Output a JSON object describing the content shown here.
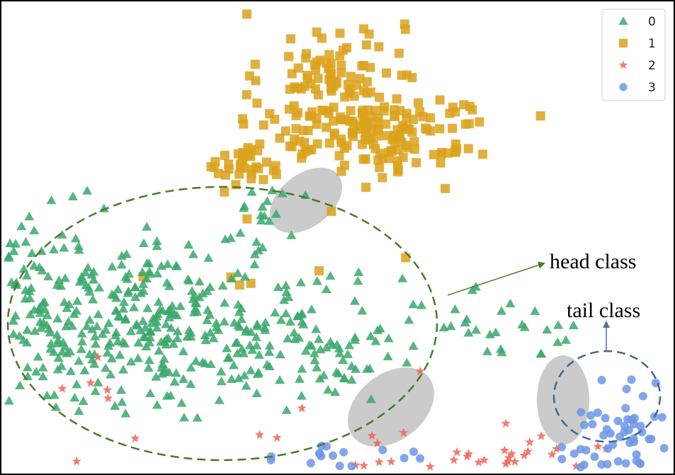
{
  "chart_data": {
    "type": "scatter",
    "title": "",
    "xlabel": "",
    "ylabel": "",
    "axes_visible": false,
    "legend": {
      "placement": "top-right",
      "entries": [
        {
          "label": "0",
          "marker": "triangle",
          "color": "#3aa86b"
        },
        {
          "label": "1",
          "marker": "square",
          "color": "#dba21c"
        },
        {
          "label": "2",
          "marker": "star",
          "color": "#f0665a"
        },
        {
          "label": "3",
          "marker": "circle",
          "color": "#6d97e8"
        }
      ]
    },
    "series": [
      {
        "name": "0",
        "marker": "triangle",
        "color": "#3aa86b",
        "approx_count": 560,
        "clusters": [
          {
            "cx": -2.0,
            "cy": -0.1,
            "sx": 1.0,
            "sy": 0.62,
            "n": 330
          },
          {
            "cx": -3.6,
            "cy": 0.3,
            "sx": 0.55,
            "sy": 0.55,
            "n": 110
          },
          {
            "cx": 0.0,
            "cy": -0.3,
            "sx": 0.45,
            "sy": 0.45,
            "n": 70
          },
          {
            "cx": 1.8,
            "cy": -0.15,
            "sx": 0.55,
            "sy": 0.22,
            "n": 30
          },
          {
            "cx": -0.6,
            "cy": 1.4,
            "sx": 0.3,
            "sy": 0.3,
            "n": 20
          }
        ]
      },
      {
        "name": "1",
        "marker": "square",
        "color": "#dba21c",
        "approx_count": 290,
        "clusters": [
          {
            "cx": 0.1,
            "cy": 3.2,
            "sx": 0.4,
            "sy": 0.55,
            "n": 130
          },
          {
            "cx": 1.0,
            "cy": 2.6,
            "sx": 0.45,
            "sy": 0.3,
            "n": 90
          },
          {
            "cx": -0.9,
            "cy": 2.1,
            "sx": 0.15,
            "sy": 0.15,
            "n": 28
          },
          {
            "cx": -0.2,
            "cy": 2.5,
            "sx": 0.5,
            "sy": 0.25,
            "n": 34
          },
          {
            "cx": -0.6,
            "cy": 0.7,
            "sx": 0.6,
            "sy": 0.4,
            "n": 8
          }
        ]
      },
      {
        "name": "2",
        "marker": "star",
        "color": "#f0665a",
        "approx_count": 175,
        "clusters": [
          {
            "cx": 1.8,
            "cy": -2.5,
            "sx": 0.7,
            "sy": 0.35,
            "n": 140
          },
          {
            "cx": 0.4,
            "cy": -2.5,
            "sx": 0.3,
            "sy": 0.3,
            "n": 22
          },
          {
            "cx": -2.0,
            "cy": -1.4,
            "sx": 1.2,
            "sy": 0.7,
            "n": 13
          }
        ]
      },
      {
        "name": "3",
        "marker": "circle",
        "color": "#6d97e8",
        "approx_count": 100,
        "clusters": [
          {
            "cx": 3.4,
            "cy": -1.9,
            "sx": 0.32,
            "sy": 0.45,
            "n": 80
          },
          {
            "cx": 0.2,
            "cy": -2.1,
            "sx": 0.45,
            "sy": 0.25,
            "n": 20
          }
        ]
      }
    ],
    "annotations": [
      {
        "text": "head class",
        "points_to": "cluster 0 (dashed green ellipse)"
      },
      {
        "text": "tail class",
        "points_to": "cluster 3 (dashed blue ellipse)"
      }
    ],
    "highlight_regions": [
      {
        "label": "",
        "between": [
          "0",
          "1"
        ]
      },
      {
        "label": "",
        "between": [
          "0",
          "3"
        ]
      },
      {
        "label": "",
        "between": [
          "2",
          "3"
        ]
      }
    ]
  },
  "colors": {
    "head_ellipse": "#4a7a2a",
    "tail_ellipse": "#3a6a93",
    "head_arrow": "#4a7a2a",
    "tail_arrow": "#4a6ea6",
    "overlap_fill": "#a8a8a8"
  }
}
